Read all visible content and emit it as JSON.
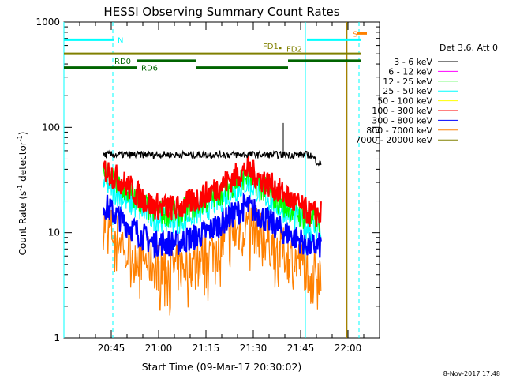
{
  "chart_data": {
    "type": "line",
    "title": "HESSI Observing Summary Count Rates",
    "xlabel": "Start Time (09-Mar-17 20:30:02)",
    "ylabel_main": "Count Rate (s",
    "ylabel_sup1": "-1",
    "ylabel_mid": " detector",
    "ylabel_sup2": "-1",
    "ylabel_end": ")",
    "y_scale": "log",
    "ylim": [
      1,
      1000
    ],
    "xlim_minutes": [
      0,
      100
    ],
    "x_ticks": [
      {
        "t": 15,
        "label": "20:45"
      },
      {
        "t": 30,
        "label": "21:00"
      },
      {
        "t": 45,
        "label": "21:15"
      },
      {
        "t": 60,
        "label": "21:30"
      },
      {
        "t": 75,
        "label": "21:45"
      },
      {
        "t": 90,
        "label": "22:00"
      }
    ],
    "y_ticks": [
      {
        "v": 1,
        "label": "1"
      },
      {
        "v": 10,
        "label": "10"
      },
      {
        "v": 100,
        "label": "100"
      },
      {
        "v": 1000,
        "label": "1000"
      }
    ],
    "legend_header": "Det 3,6, Att 0",
    "series": [
      {
        "name": "3 - 6 keV",
        "color": "#000000",
        "levels": [
          55,
          55,
          55,
          55,
          55,
          55,
          55,
          55,
          45
        ],
        "spike": {
          "t": 69.5,
          "v": 110
        }
      },
      {
        "name": "6 - 12 keV",
        "color": "#ff00ff"
      },
      {
        "name": "12 - 25 keV",
        "color": "#00ff00",
        "levels": [
          36,
          24,
          16,
          15,
          20,
          35,
          20,
          13,
          13
        ]
      },
      {
        "name": "25 - 50 keV",
        "color": "#00ffff",
        "levels": [
          30,
          20,
          14,
          13,
          17,
          30,
          18,
          11,
          11
        ]
      },
      {
        "name": "50 - 100 keV",
        "color": "#ffff00"
      },
      {
        "name": "100 - 300 keV",
        "color": "#ff0000",
        "levels": [
          40,
          28,
          18,
          17,
          23,
          40,
          25,
          15,
          15
        ]
      },
      {
        "name": "300 - 800 keV",
        "color": "#0000ff",
        "levels": [
          18,
          12,
          8,
          8,
          10,
          18,
          11,
          7.5,
          7.5
        ]
      },
      {
        "name": "800 - 7000 keV",
        "color": "#ff8000",
        "levels": [
          12,
          7.5,
          5,
          4.5,
          6,
          12,
          7,
          4.5,
          4.5
        ]
      },
      {
        "name": "7000 - 20000 keV",
        "color": "#808000"
      }
    ],
    "level_times": [
      13,
      20,
      28,
      36,
      45,
      58,
      68,
      78,
      81
    ],
    "data_start": 12.5,
    "data_end": 81.5,
    "flags": [
      {
        "label": "N",
        "color": "#00ffff",
        "segments": [
          [
            0,
            16
          ],
          [
            77,
            94
          ]
        ],
        "v": 680
      },
      {
        "label": "S",
        "color": "#ff8000",
        "segments": [
          [
            93,
            96
          ]
        ],
        "v": 780
      },
      {
        "label": "FD1",
        "color": "#808000",
        "segments": [
          [
            0,
            94
          ]
        ],
        "v": 500,
        "dot": 68.5
      },
      {
        "label": "FD2",
        "color": "#808000",
        "segments": [],
        "v": 470
      },
      {
        "label": "RD0",
        "color": "#006400",
        "segments": [
          [
            23,
            42
          ],
          [
            71,
            94
          ]
        ],
        "v": 430
      },
      {
        "label": "RD6",
        "color": "#006400",
        "segments": [
          [
            0,
            23
          ],
          [
            42,
            71
          ]
        ],
        "v": 370
      }
    ],
    "vlines": [
      {
        "t": 0,
        "color": "#00ffff",
        "dashed": false
      },
      {
        "t": 15.5,
        "color": "#00ffff",
        "dashed": true
      },
      {
        "t": 76.5,
        "color": "#00ffff",
        "dashed": false
      },
      {
        "t": 93.5,
        "color": "#00ffff",
        "dashed": true
      },
      {
        "t": 89.5,
        "color": "#ff8000",
        "dashed": false
      },
      {
        "t": 89.7,
        "color": "#808000",
        "dashed": false
      }
    ],
    "footer_date": "8-Nov-2017 17:48"
  }
}
